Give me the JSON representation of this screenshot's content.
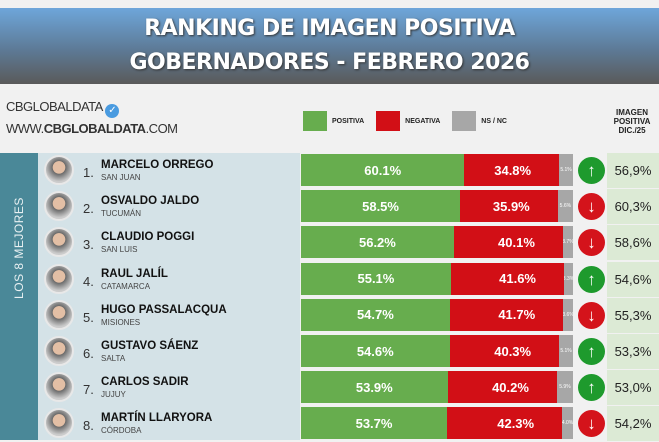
{
  "header": {
    "line1": "RANKING DE IMAGEN POSITIVA",
    "line2": "GOBERNADORES - FEBRERO 2026"
  },
  "brand": {
    "name": "CBGLOBALDATA",
    "url_prefix": "WWW.",
    "url_bold": "CBGLOBALDATA",
    "url_suffix": ".COM"
  },
  "legend": [
    {
      "label": "POSITIVA",
      "color": "#67ad4e"
    },
    {
      "label": "NEGATIVA",
      "color": "#d20f16"
    },
    {
      "label": "NS / NC",
      "color": "#a7a7a7"
    }
  ],
  "dic_header": [
    "IMAGEN",
    "POSITIVA",
    "DIC./25"
  ],
  "side_label": "LOS 8 MEJORES",
  "chart_data": {
    "type": "bar",
    "stacked": true,
    "orientation": "horizontal",
    "unit": "%",
    "series_names": [
      "POSITIVA",
      "NEGATIVA",
      "NS / NC"
    ],
    "rows": [
      {
        "rank": "1.",
        "name": "MARCELO ORREGO",
        "province": "SAN JUAN",
        "positiva": "60.1%",
        "negativa": "34.8%",
        "nsnc": "5.1%",
        "trend": "up",
        "dic25": "56,9%",
        "p": 60.1,
        "n": 34.8,
        "s": 5.1
      },
      {
        "rank": "2.",
        "name": "OSVALDO JALDO",
        "province": "TUCUMÁN",
        "positiva": "58.5%",
        "negativa": "35.9%",
        "nsnc": "5.6%",
        "trend": "down",
        "dic25": "60,3%",
        "p": 58.5,
        "n": 35.9,
        "s": 5.6
      },
      {
        "rank": "3.",
        "name": "CLAUDIO POGGI",
        "province": "SAN LUIS",
        "positiva": "56.2%",
        "negativa": "40.1%",
        "nsnc": "3.7%",
        "trend": "down",
        "dic25": "58,6%",
        "p": 56.2,
        "n": 40.1,
        "s": 3.7
      },
      {
        "rank": "4.",
        "name": "RAUL JALÍL",
        "province": "CATAMARCA",
        "positiva": "55.1%",
        "negativa": "41.6%",
        "nsnc": "3.3%",
        "trend": "up",
        "dic25": "54,6%",
        "p": 55.1,
        "n": 41.6,
        "s": 3.3
      },
      {
        "rank": "5.",
        "name": "HUGO PASSALACQUA",
        "province": "MISIONES",
        "positiva": "54.7%",
        "negativa": "41.7%",
        "nsnc": "3.6%",
        "trend": "down",
        "dic25": "55,3%",
        "p": 54.7,
        "n": 41.7,
        "s": 3.6
      },
      {
        "rank": "6.",
        "name": "GUSTAVO SÁENZ",
        "province": "SALTA",
        "positiva": "54.6%",
        "negativa": "40.3%",
        "nsnc": "5.1%",
        "trend": "up",
        "dic25": "53,3%",
        "p": 54.6,
        "n": 40.3,
        "s": 5.1
      },
      {
        "rank": "7.",
        "name": "CARLOS SADIR",
        "province": "JUJUY",
        "positiva": "53.9%",
        "negativa": "40.2%",
        "nsnc": "5.9%",
        "trend": "up",
        "dic25": "53,0%",
        "p": 53.9,
        "n": 40.2,
        "s": 5.9
      },
      {
        "rank": "8.",
        "name": "MARTÍN LLARYORA",
        "province": "CÓRDOBA",
        "positiva": "53.7%",
        "negativa": "42.3%",
        "nsnc": "4.0%",
        "trend": "down",
        "dic25": "54,2%",
        "p": 53.7,
        "n": 42.3,
        "s": 4.0
      }
    ]
  }
}
